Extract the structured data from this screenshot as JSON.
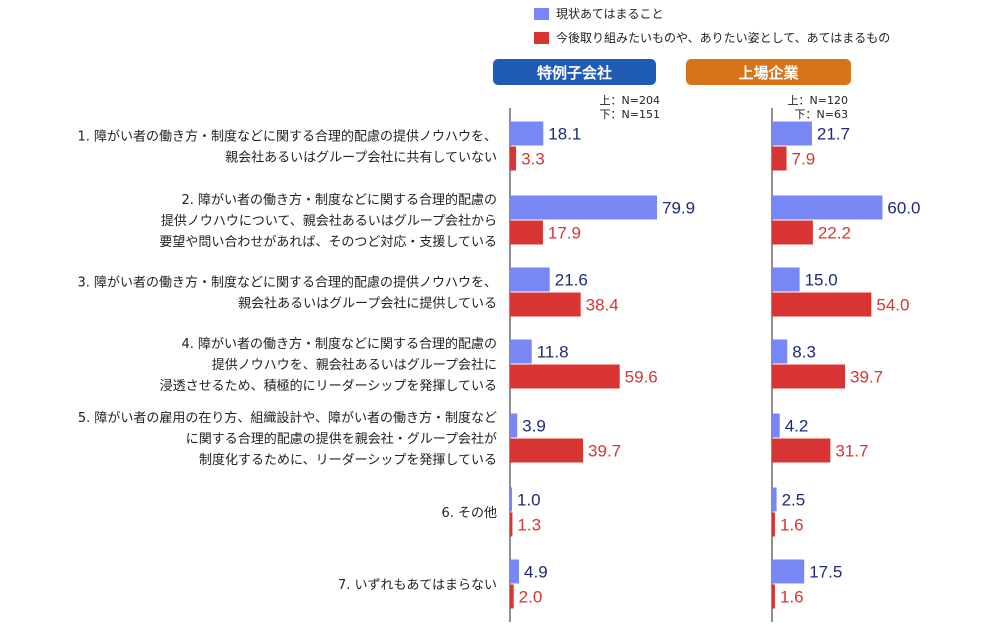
{
  "chart_data": {
    "type": "bar",
    "orientation": "horizontal",
    "legend": {
      "placement": "top",
      "items": [
        {
          "label": "現状あてはまること",
          "color": "#7887f5"
        },
        {
          "label": "今後取り組みたいものや、ありたい姿として、あてはまるもの",
          "color": "#d93434"
        }
      ]
    },
    "categories": [
      [
        "1. 障がい者の働き方・制度などに関する合理的配慮の提供ノウハウを、",
        "親会社あるいはグループ会社に共有していない"
      ],
      [
        "2. 障がい者の働き方・制度などに関する合理的配慮の",
        "提供ノウハウについて、親会社あるいはグループ会社から",
        "要望や問い合わせがあれば、そのつど対応・支援している"
      ],
      [
        "3. 障がい者の働き方・制度などに関する合理的配慮の提供ノウハウを、",
        "親会社あるいはグループ会社に提供している"
      ],
      [
        "4. 障がい者の働き方・制度などに関する合理的配慮の",
        "提供ノウハウを、親会社あるいはグループ会社に",
        "浸透させるため、積極的にリーダーシップを発揮している"
      ],
      [
        "5. 障がい者の雇用の在り方、組織設計や、障がい者の働き方・制度など",
        "に関する合理的配慮の提供を親会社・グループ会社が",
        "制度化するために、リーダーシップを発揮している"
      ],
      [
        "6. その他"
      ],
      [
        "7. いずれもあてはまらない"
      ]
    ],
    "panels": [
      {
        "title": "特例子会社",
        "title_color": "#1f5bb5",
        "note_lines": [
          "上：N=204",
          "下：N=151"
        ],
        "series": [
          {
            "name": "現状あてはまること",
            "values": [
              18.1,
              79.9,
              21.6,
              11.8,
              3.9,
              1.0,
              4.9
            ]
          },
          {
            "name": "今後取り組みたいものや、ありたい姿として、あてはまるもの",
            "values": [
              3.3,
              17.9,
              38.4,
              59.6,
              39.7,
              1.3,
              2.0
            ]
          }
        ],
        "value_labels_current": [
          "18.1",
          "79.9",
          "21.6",
          "11.8",
          "3.9",
          "1.0",
          "4.9"
        ],
        "value_labels_future": [
          "3.3",
          "17.9",
          "38.4",
          "59.6",
          "39.7",
          "1.3",
          "2.0"
        ]
      },
      {
        "title": "上場企業",
        "title_color": "#d9731a",
        "note_lines": [
          "上：N=120",
          "下：N=63"
        ],
        "series": [
          {
            "name": "現状あてはまること",
            "values": [
              21.7,
              60.0,
              15.0,
              8.3,
              4.2,
              2.5,
              17.5
            ]
          },
          {
            "name": "今後取り組みたいものや、ありたい姿として、あてはまるもの",
            "values": [
              7.9,
              22.2,
              54.0,
              39.7,
              31.7,
              1.6,
              1.6
            ]
          }
        ],
        "value_labels_current": [
          "21.7",
          "60.0",
          "15.0",
          "8.3",
          "4.2",
          "2.5",
          "17.5"
        ],
        "value_labels_future": [
          "7.9",
          "22.2",
          "54.0",
          "39.7",
          "31.7",
          "1.6",
          "1.6"
        ]
      }
    ],
    "value_label_colors": {
      "current": "#1e2a78",
      "future": "#d93434"
    },
    "xlim": [
      0,
      100
    ],
    "grid": false
  }
}
